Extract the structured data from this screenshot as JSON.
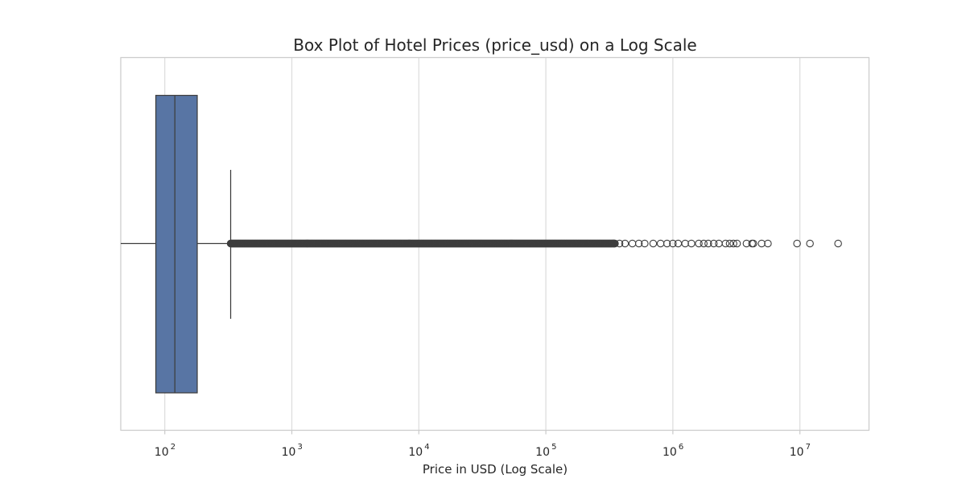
{
  "chart_data": {
    "type": "boxplot",
    "title": "Box Plot of Hotel Prices (price_usd) on a Log Scale",
    "xlabel": "Price in USD (Log Scale)",
    "ylabel": "",
    "x_scale": "log",
    "xlim": [
      45,
      35000000
    ],
    "x_ticks": [
      {
        "value": 100,
        "base": "10",
        "exp": "2"
      },
      {
        "value": 1000,
        "base": "10",
        "exp": "3"
      },
      {
        "value": 10000,
        "base": "10",
        "exp": "4"
      },
      {
        "value": 100000,
        "base": "10",
        "exp": "5"
      },
      {
        "value": 1000000,
        "base": "10",
        "exp": "6"
      },
      {
        "value": 10000000,
        "base": "10",
        "exp": "7"
      }
    ],
    "grid": "vertical",
    "box": {
      "min": 45,
      "q1": 85,
      "median": 120,
      "q3": 180,
      "whisker_high": 330,
      "color": "#5875a4",
      "edge_color": "#3d3d3d"
    },
    "outliers": {
      "dense_from": 330,
      "dense_to": 350000,
      "sparse": [
        380000,
        420000,
        480000,
        540000,
        600000,
        700000,
        800000,
        900000,
        1000000,
        1100000,
        1250000,
        1400000,
        1600000,
        1750000,
        1900000,
        2100000,
        2300000,
        2600000,
        2800000,
        3000000,
        3200000,
        3800000,
        4200000,
        4300000,
        5000000,
        5600000,
        9500000,
        12000000,
        20000000
      ]
    }
  }
}
